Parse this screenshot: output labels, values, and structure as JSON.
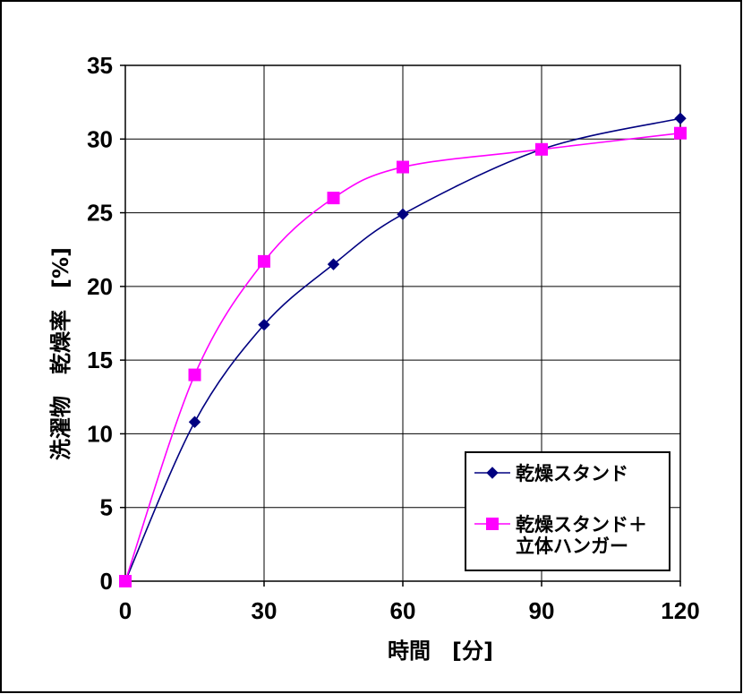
{
  "chart_data": {
    "type": "line",
    "xlabel": "時間　[分]",
    "ylabel": "洗濯物　乾燥率　[%]",
    "xlim": [
      0,
      120
    ],
    "ylim": [
      0,
      35
    ],
    "x_ticks": [
      "0",
      "30",
      "60",
      "90",
      "120"
    ],
    "y_ticks": [
      "0",
      "5",
      "10",
      "15",
      "20",
      "25",
      "30",
      "35"
    ],
    "grid": true,
    "legend_position": "bottom-right",
    "series": [
      {
        "name": "乾燥スタンド",
        "color": "#000080",
        "marker": "diamond",
        "x": [
          0,
          15,
          30,
          45,
          60,
          90,
          120
        ],
        "y": [
          0,
          10.8,
          17.4,
          21.5,
          24.9,
          29.3,
          31.4
        ]
      },
      {
        "name_lines": [
          "乾燥スタンド＋",
          "立体ハンガー"
        ],
        "color": "#ff00ff",
        "marker": "square",
        "x": [
          0,
          15,
          30,
          45,
          60,
          90,
          120
        ],
        "y": [
          0,
          14.0,
          21.7,
          26.0,
          28.1,
          29.3,
          30.4
        ]
      }
    ]
  }
}
